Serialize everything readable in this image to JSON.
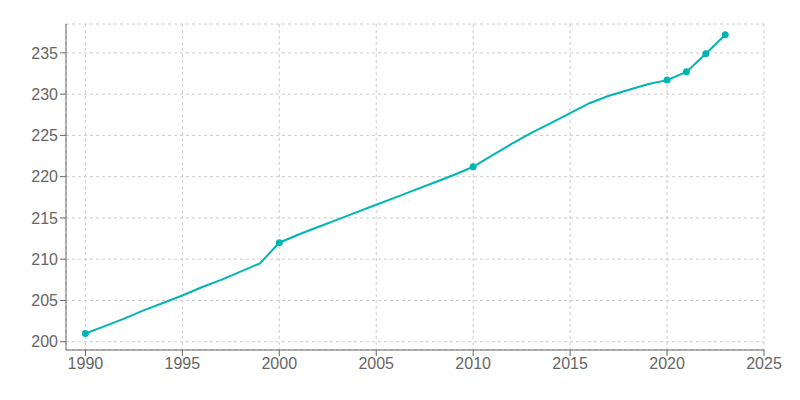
{
  "chart_data": {
    "type": "line",
    "x": [
      1990,
      1991,
      1992,
      1993,
      1994,
      1995,
      1996,
      1997,
      1998,
      1999,
      2000,
      2001,
      2002,
      2003,
      2004,
      2005,
      2006,
      2007,
      2008,
      2009,
      2010,
      2011,
      2012,
      2013,
      2014,
      2015,
      2016,
      2017,
      2018,
      2019,
      2020,
      2021,
      2022,
      2023
    ],
    "series": [
      {
        "color": "#00B5B5",
        "line_style": "solid",
        "values": [
          201.0,
          201.9,
          202.8,
          203.8,
          204.7,
          205.6,
          206.6,
          207.5,
          208.5,
          209.5,
          212.0,
          213.0,
          213.9,
          214.8,
          215.7,
          216.6,
          217.5,
          218.4,
          219.3,
          220.2,
          221.2,
          222.6,
          224.0,
          225.3,
          226.5,
          227.7,
          228.9,
          229.8,
          230.5,
          231.2,
          231.7,
          232.7,
          234.9,
          237.2
        ]
      },
      {
        "color": "#00B5B5",
        "type": "scatter",
        "marker": "circle",
        "values": [
          201.0,
          null,
          null,
          null,
          null,
          null,
          null,
          null,
          null,
          null,
          212.0,
          null,
          null,
          null,
          null,
          null,
          null,
          null,
          null,
          null,
          221.2,
          null,
          null,
          null,
          null,
          null,
          null,
          null,
          null,
          null,
          231.7,
          232.7,
          234.9,
          237.2
        ]
      }
    ],
    "xlim": [
      1989,
      2025
    ],
    "ylim": [
      199,
      238.5
    ],
    "xticks": [
      1990,
      1995,
      2000,
      2005,
      2010,
      2015,
      2020,
      2025
    ],
    "yticks": [
      200,
      205,
      210,
      215,
      220,
      225,
      230,
      235
    ],
    "grid": true
  }
}
